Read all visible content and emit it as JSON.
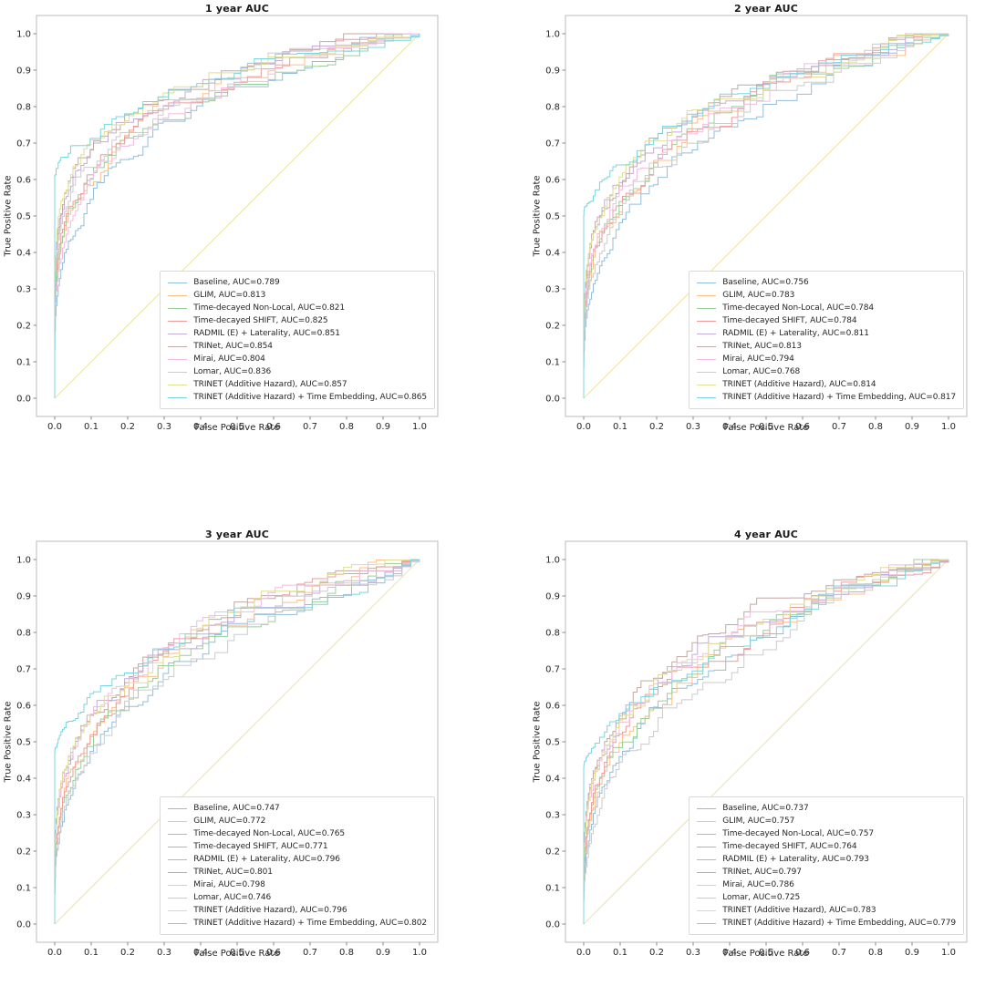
{
  "figure": {
    "background": "#ffffff",
    "spine_color": "#bbbbbb",
    "tick_color": "#888888"
  },
  "chart_data": [
    {
      "type": "line",
      "subtype": "roc-step",
      "title": "1 year AUC",
      "xlabel": "False Positive Rate",
      "ylabel": "True Positive Rate",
      "xlim": [
        -0.05,
        1.05
      ],
      "ylim": [
        -0.05,
        1.05
      ],
      "grid": false,
      "legend_position": "lower right",
      "xticks": [
        "0.0",
        "0.1",
        "0.2",
        "0.3",
        "0.4",
        "0.5",
        "0.6",
        "0.7",
        "0.8",
        "0.9",
        "1.0"
      ],
      "yticks": [
        "0.0",
        "0.1",
        "0.2",
        "0.3",
        "0.4",
        "0.5",
        "0.6",
        "0.7",
        "0.8",
        "0.9",
        "1.0"
      ],
      "chance_line": {
        "color": "#EFE3A3",
        "from": [
          0,
          0
        ],
        "to": [
          1,
          1
        ]
      },
      "series": [
        {
          "name": "Baseline",
          "label": "Baseline, AUC=0.789",
          "auc": 0.789,
          "color": "#92BEDC"
        },
        {
          "name": "GLIM",
          "label": "GLIM, AUC=0.813",
          "auc": 0.813,
          "color": "#FFBF87"
        },
        {
          "name": "Time-decayed Non-Local",
          "label": "Time-decayed Non-Local, AUC=0.821",
          "auc": 0.821,
          "color": "#98CF98"
        },
        {
          "name": "Time-decayed SHIFT",
          "label": "Time-decayed SHIFT, AUC=0.825",
          "auc": 0.825,
          "color": "#EC9C9C"
        },
        {
          "name": "RADMIL (E) + Laterality",
          "label": "RADMIL (E) + Laterality, AUC=0.851",
          "auc": 0.851,
          "color": "#C2ADD9"
        },
        {
          "name": "TRINet",
          "label": "TRINet, AUC=0.854",
          "auc": 0.854,
          "color": "#C0A9A4"
        },
        {
          "name": "Mirai",
          "label": "Mirai, AUC=0.804",
          "auc": 0.804,
          "color": "#F1BCE1"
        },
        {
          "name": "Lomar",
          "label": "Lomar, AUC=0.836",
          "auc": 0.836,
          "color": "#CBCBCB"
        },
        {
          "name": "TRINET (Additive Hazard)",
          "label": "TRINET (Additive Hazard), AUC=0.857",
          "auc": 0.857,
          "color": "#DEDF94"
        },
        {
          "name": "TRINET (Additive Hazard) + Time Embedding",
          "label": "TRINET (Additive Hazard) + Time Embedding, AUC=0.865",
          "auc": 0.865,
          "color": "#7DD4E0",
          "y_intercept": 0.6
        }
      ]
    },
    {
      "type": "line",
      "subtype": "roc-step",
      "title": "2 year AUC",
      "xlabel": "False Positive Rate",
      "ylabel": "True Positive Rate",
      "xlim": [
        -0.05,
        1.05
      ],
      "ylim": [
        -0.05,
        1.05
      ],
      "grid": false,
      "legend_position": "lower right",
      "xticks": [
        "0.0",
        "0.1",
        "0.2",
        "0.3",
        "0.4",
        "0.5",
        "0.6",
        "0.7",
        "0.8",
        "0.9",
        "1.0"
      ],
      "yticks": [
        "0.0",
        "0.1",
        "0.2",
        "0.3",
        "0.4",
        "0.5",
        "0.6",
        "0.7",
        "0.8",
        "0.9",
        "1.0"
      ],
      "chance_line": {
        "color": "#EFE3A3",
        "from": [
          0,
          0
        ],
        "to": [
          1,
          1
        ]
      },
      "series": [
        {
          "name": "Baseline",
          "label": "Baseline, AUC=0.756",
          "auc": 0.756,
          "color": "#92BEDC"
        },
        {
          "name": "GLIM",
          "label": "GLIM, AUC=0.783",
          "auc": 0.783,
          "color": "#FFBF87"
        },
        {
          "name": "Time-decayed Non-Local",
          "label": "Time-decayed Non-Local, AUC=0.784",
          "auc": 0.784,
          "color": "#98CF98"
        },
        {
          "name": "Time-decayed SHIFT",
          "label": "Time-decayed SHIFT, AUC=0.784",
          "auc": 0.784,
          "color": "#EC9C9C"
        },
        {
          "name": "RADMIL (E) + Laterality",
          "label": "RADMIL (E) + Laterality, AUC=0.811",
          "auc": 0.811,
          "color": "#C2ADD9"
        },
        {
          "name": "TRINet",
          "label": "TRINet, AUC=0.813",
          "auc": 0.813,
          "color": "#C0A9A4"
        },
        {
          "name": "Mirai",
          "label": "Mirai, AUC=0.794",
          "auc": 0.794,
          "color": "#F1BCE1"
        },
        {
          "name": "Lomar",
          "label": "Lomar, AUC=0.768",
          "auc": 0.768,
          "color": "#CBCBCB"
        },
        {
          "name": "TRINET (Additive Hazard)",
          "label": "TRINET (Additive Hazard), AUC=0.814",
          "auc": 0.814,
          "color": "#DEDF94"
        },
        {
          "name": "TRINET (Additive Hazard) + Time Embedding",
          "label": "TRINET (Additive Hazard) + Time Embedding, AUC=0.817",
          "auc": 0.817,
          "color": "#7DD4E0",
          "y_intercept": 0.5
        }
      ]
    },
    {
      "type": "line",
      "subtype": "roc-step",
      "title": "3 year AUC",
      "xlabel": "False Positive Rate",
      "ylabel": "True Positive Rate",
      "xlim": [
        -0.05,
        1.05
      ],
      "ylim": [
        -0.05,
        1.05
      ],
      "grid": false,
      "legend_position": "lower right",
      "xticks": [
        "0.0",
        "0.1",
        "0.2",
        "0.3",
        "0.4",
        "0.5",
        "0.6",
        "0.7",
        "0.8",
        "0.9",
        "1.0"
      ],
      "yticks": [
        "0.0",
        "0.1",
        "0.2",
        "0.3",
        "0.4",
        "0.5",
        "0.6",
        "0.7",
        "0.8",
        "0.9",
        "1.0"
      ],
      "chance_line": {
        "color": "#EFE3A3",
        "from": [
          0,
          0
        ],
        "to": [
          1,
          1
        ]
      },
      "series": [
        {
          "name": "Baseline",
          "label": "Baseline, AUC=0.747",
          "auc": 0.747,
          "color": "#92BEDC"
        },
        {
          "name": "GLIM",
          "label": "GLIM, AUC=0.772",
          "auc": 0.772,
          "color": "#FFBF87"
        },
        {
          "name": "Time-decayed Non-Local",
          "label": "Time-decayed Non-Local, AUC=0.765",
          "auc": 0.765,
          "color": "#98CF98"
        },
        {
          "name": "Time-decayed SHIFT",
          "label": "Time-decayed SHIFT, AUC=0.771",
          "auc": 0.771,
          "color": "#EC9C9C"
        },
        {
          "name": "RADMIL (E) + Laterality",
          "label": "RADMIL (E) + Laterality, AUC=0.796",
          "auc": 0.796,
          "color": "#C2ADD9"
        },
        {
          "name": "TRINet",
          "label": "TRINet, AUC=0.801",
          "auc": 0.801,
          "color": "#C0A9A4"
        },
        {
          "name": "Mirai",
          "label": "Mirai, AUC=0.798",
          "auc": 0.798,
          "color": "#F1BCE1"
        },
        {
          "name": "Lomar",
          "label": "Lomar, AUC=0.746",
          "auc": 0.746,
          "color": "#CBCBCB"
        },
        {
          "name": "TRINET (Additive Hazard)",
          "label": "TRINET (Additive Hazard), AUC=0.796",
          "auc": 0.796,
          "color": "#DEDF94"
        },
        {
          "name": "TRINET (Additive Hazard) + Time Embedding",
          "label": "TRINET (Additive Hazard) + Time Embedding, AUC=0.802",
          "auc": 0.802,
          "color": "#7DD4E0",
          "y_intercept": 0.47
        }
      ]
    },
    {
      "type": "line",
      "subtype": "roc-step",
      "title": "4 year AUC",
      "xlabel": "False Positive Rate",
      "ylabel": "True Positive Rate",
      "xlim": [
        -0.05,
        1.05
      ],
      "ylim": [
        -0.05,
        1.05
      ],
      "grid": false,
      "legend_position": "lower right",
      "xticks": [
        "0.0",
        "0.1",
        "0.2",
        "0.3",
        "0.4",
        "0.5",
        "0.6",
        "0.7",
        "0.8",
        "0.9",
        "1.0"
      ],
      "yticks": [
        "0.0",
        "0.1",
        "0.2",
        "0.3",
        "0.4",
        "0.5",
        "0.6",
        "0.7",
        "0.8",
        "0.9",
        "1.0"
      ],
      "chance_line": {
        "color": "#EFE3A3",
        "from": [
          0,
          0
        ],
        "to": [
          1,
          1
        ]
      },
      "series": [
        {
          "name": "Baseline",
          "label": "Baseline, AUC=0.737",
          "auc": 0.737,
          "color": "#92BEDC"
        },
        {
          "name": "GLIM",
          "label": "GLIM, AUC=0.757",
          "auc": 0.757,
          "color": "#FFBF87"
        },
        {
          "name": "Time-decayed Non-Local",
          "label": "Time-decayed Non-Local, AUC=0.757",
          "auc": 0.757,
          "color": "#98CF98"
        },
        {
          "name": "Time-decayed SHIFT",
          "label": "Time-decayed SHIFT, AUC=0.764",
          "auc": 0.764,
          "color": "#EC9C9C"
        },
        {
          "name": "RADMIL (E) + Laterality",
          "label": "RADMIL (E) + Laterality, AUC=0.793",
          "auc": 0.793,
          "color": "#C2ADD9"
        },
        {
          "name": "TRINet",
          "label": "TRINet, AUC=0.797",
          "auc": 0.797,
          "color": "#C0A9A4"
        },
        {
          "name": "Mirai",
          "label": "Mirai, AUC=0.786",
          "auc": 0.786,
          "color": "#F1BCE1"
        },
        {
          "name": "Lomar",
          "label": "Lomar, AUC=0.725",
          "auc": 0.725,
          "color": "#CBCBCB"
        },
        {
          "name": "TRINET (Additive Hazard)",
          "label": "TRINET (Additive Hazard), AUC=0.783",
          "auc": 0.783,
          "color": "#DEDF94"
        },
        {
          "name": "TRINET (Additive Hazard) + Time Embedding",
          "label": "TRINET (Additive Hazard) + Time Embedding, AUC=0.779",
          "auc": 0.779,
          "color": "#7DD4E0",
          "y_intercept": 0.43
        }
      ]
    }
  ]
}
